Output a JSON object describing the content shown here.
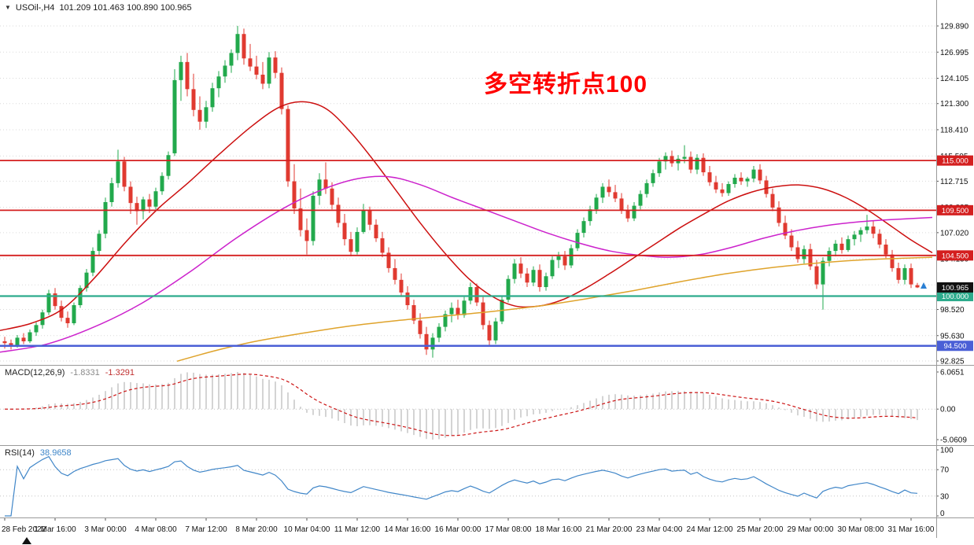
{
  "window": {
    "header_symbol": "USOil-,H4",
    "header_ohlc": "101.209 101.463 100.890 100.965"
  },
  "annotation": {
    "text": "多空转折点100",
    "color": "#ff0000"
  },
  "chart_data": {
    "type": "candlestick",
    "symbol": "USOil-",
    "timeframe": "H4",
    "last_bar": {
      "open": 101.209,
      "high": 101.463,
      "low": 100.89,
      "close": 100.965
    },
    "price_axis": {
      "labels": [
        "129.890",
        "126.995",
        "124.105",
        "121.300",
        "118.410",
        "115.505",
        "112.715",
        "109.825",
        "107.020",
        "104.130",
        "101.240",
        "98.520",
        "95.630",
        "92.825"
      ],
      "top_value": 129.89,
      "bottom_value": 92.825
    },
    "time_axis": [
      "28 Feb 2022",
      "1 Mar 16:00",
      "3 Mar 00:00",
      "4 Mar 08:00",
      "7 Mar 12:00",
      "8 Mar 20:00",
      "10 Mar 04:00",
      "11 Mar 12:00",
      "14 Mar 16:00",
      "16 Mar 00:00",
      "17 Mar 08:00",
      "18 Mar 16:00",
      "21 Mar 20:00",
      "23 Mar 04:00",
      "24 Mar 12:00",
      "25 Mar 20:00",
      "29 Mar 00:00",
      "30 Mar 08:00",
      "31 Mar 16:00"
    ],
    "hlines": [
      {
        "price": 115.0,
        "label": "115.000",
        "color": "#d41f1f",
        "width": 1.8
      },
      {
        "price": 109.5,
        "label": "109.500",
        "color": "#d41f1f",
        "width": 1.8
      },
      {
        "price": 104.5,
        "label": "104.500",
        "color": "#d41f1f",
        "width": 1.8
      },
      {
        "price": 100.0,
        "label": "100.000",
        "color": "#2cab8c",
        "width": 2.2
      },
      {
        "price": 94.5,
        "label": "94.500",
        "color": "#4a5fd6",
        "width": 2.4
      }
    ],
    "price_tag": {
      "label": "100.965",
      "price": 100.965,
      "bg": "#111111"
    },
    "colors": {
      "up": "#22a94c",
      "down": "#e03a30",
      "ma_fast": "#cc0f0f",
      "ma_mid": "#cc22cc",
      "ma_slow": "#dfa32b",
      "macd_hist": "#bdbdbd",
      "macd_signal": "#cc1414",
      "rsi": "#4086c8",
      "marker": "#2a7fd4"
    },
    "candles": [
      [
        95.0,
        95.5,
        94.2,
        94.8
      ],
      [
        94.8,
        95.2,
        94.1,
        94.5
      ],
      [
        94.5,
        95.7,
        94.3,
        95.4
      ],
      [
        95.4,
        95.9,
        94.7,
        95.0
      ],
      [
        95.0,
        96.3,
        94.8,
        96.0
      ],
      [
        96.0,
        97.1,
        95.6,
        96.8
      ],
      [
        96.8,
        98.5,
        96.4,
        98.2
      ],
      [
        98.2,
        100.7,
        97.9,
        100.3
      ],
      [
        100.3,
        100.9,
        98.5,
        98.9
      ],
      [
        98.9,
        99.5,
        97.2,
        97.6
      ],
      [
        97.6,
        98.3,
        96.5,
        97.0
      ],
      [
        97.0,
        99.3,
        96.8,
        99.0
      ],
      [
        99.0,
        101.2,
        98.7,
        100.9
      ],
      [
        100.9,
        103.0,
        100.5,
        102.6
      ],
      [
        102.6,
        105.4,
        102.2,
        105.0
      ],
      [
        105.0,
        107.3,
        104.5,
        106.9
      ],
      [
        106.9,
        110.9,
        106.4,
        110.4
      ],
      [
        110.4,
        113.1,
        109.9,
        112.5
      ],
      [
        112.5,
        116.2,
        112.0,
        114.9
      ],
      [
        114.9,
        115.4,
        111.6,
        112.1
      ],
      [
        112.1,
        112.7,
        109.1,
        110.3
      ],
      [
        110.3,
        111.0,
        107.9,
        109.4
      ],
      [
        109.4,
        111.0,
        108.5,
        110.7
      ],
      [
        110.7,
        111.3,
        109.2,
        109.9
      ],
      [
        109.9,
        112.0,
        109.6,
        111.6
      ],
      [
        111.6,
        113.7,
        111.2,
        113.3
      ],
      [
        113.3,
        116.0,
        112.9,
        115.6
      ],
      [
        115.8,
        125.1,
        115.5,
        123.9
      ],
      [
        123.9,
        126.6,
        121.6,
        125.9
      ],
      [
        125.9,
        126.9,
        122.1,
        122.9
      ],
      [
        122.9,
        124.6,
        119.9,
        120.6
      ],
      [
        120.6,
        122.1,
        118.4,
        119.3
      ],
      [
        119.3,
        121.6,
        118.6,
        120.9
      ],
      [
        120.9,
        123.6,
        120.4,
        123.0
      ],
      [
        123.0,
        124.9,
        122.0,
        124.3
      ],
      [
        124.3,
        126.1,
        123.6,
        125.5
      ],
      [
        125.5,
        127.3,
        124.7,
        126.9
      ],
      [
        126.9,
        129.9,
        126.1,
        129.0
      ],
      [
        129.0,
        129.6,
        125.6,
        126.3
      ],
      [
        126.3,
        127.9,
        124.9,
        125.4
      ],
      [
        125.4,
        126.6,
        124.0,
        124.5
      ],
      [
        124.5,
        125.9,
        122.9,
        123.5
      ],
      [
        123.5,
        127.0,
        123.0,
        126.4
      ],
      [
        126.4,
        127.1,
        124.1,
        124.7
      ],
      [
        124.7,
        125.3,
        120.1,
        120.7
      ],
      [
        120.7,
        121.1,
        112.1,
        112.7
      ],
      [
        112.7,
        114.6,
        109.1,
        109.7
      ],
      [
        109.7,
        111.9,
        106.6,
        107.3
      ],
      [
        107.3,
        108.6,
        104.6,
        106.1
      ],
      [
        106.1,
        111.6,
        105.6,
        111.1
      ],
      [
        111.1,
        113.6,
        110.1,
        112.9
      ],
      [
        112.9,
        114.8,
        111.3,
        111.9
      ],
      [
        111.9,
        112.6,
        109.6,
        110.1
      ],
      [
        110.1,
        110.9,
        107.6,
        108.1
      ],
      [
        108.1,
        109.1,
        105.6,
        106.3
      ],
      [
        106.3,
        107.1,
        104.4,
        104.9
      ],
      [
        104.9,
        107.6,
        104.6,
        107.1
      ],
      [
        107.1,
        110.2,
        106.9,
        109.5
      ],
      [
        109.5,
        109.9,
        107.3,
        107.9
      ],
      [
        107.9,
        108.5,
        106.0,
        106.4
      ],
      [
        106.4,
        107.1,
        104.3,
        104.8
      ],
      [
        104.8,
        105.4,
        102.6,
        103.1
      ],
      [
        103.1,
        104.1,
        101.3,
        101.8
      ],
      [
        101.8,
        102.5,
        99.9,
        100.4
      ],
      [
        100.4,
        101.1,
        98.5,
        99.0
      ],
      [
        99.0,
        99.6,
        96.9,
        97.3
      ],
      [
        97.3,
        98.1,
        95.3,
        95.8
      ],
      [
        95.8,
        96.6,
        93.5,
        94.1
      ],
      [
        94.1,
        95.9,
        93.2,
        95.4
      ],
      [
        95.4,
        97.0,
        94.9,
        96.6
      ],
      [
        96.6,
        98.4,
        96.1,
        98.0
      ],
      [
        98.0,
        99.3,
        97.1,
        98.7
      ],
      [
        98.7,
        99.6,
        97.4,
        97.9
      ],
      [
        97.9,
        99.9,
        97.6,
        99.5
      ],
      [
        99.5,
        101.5,
        99.1,
        101.0
      ],
      [
        101.0,
        101.4,
        98.9,
        99.3
      ],
      [
        99.3,
        99.9,
        96.3,
        96.8
      ],
      [
        96.8,
        97.3,
        94.4,
        95.1
      ],
      [
        95.1,
        97.6,
        94.7,
        97.2
      ],
      [
        97.2,
        100.0,
        96.9,
        99.6
      ],
      [
        99.6,
        102.3,
        99.3,
        101.9
      ],
      [
        101.9,
        104.1,
        101.4,
        103.6
      ],
      [
        103.6,
        104.3,
        102.0,
        102.5
      ],
      [
        102.5,
        103.1,
        101.0,
        101.5
      ],
      [
        101.5,
        103.3,
        101.1,
        102.9
      ],
      [
        102.9,
        103.5,
        100.5,
        101.0
      ],
      [
        101.0,
        102.6,
        100.6,
        102.2
      ],
      [
        102.2,
        104.4,
        101.9,
        104.0
      ],
      [
        104.0,
        104.9,
        103.1,
        104.4
      ],
      [
        104.4,
        105.0,
        102.9,
        103.4
      ],
      [
        103.4,
        105.7,
        103.1,
        105.3
      ],
      [
        105.3,
        107.4,
        105.0,
        107.0
      ],
      [
        107.0,
        108.7,
        106.5,
        108.3
      ],
      [
        108.3,
        110.0,
        107.8,
        109.6
      ],
      [
        109.6,
        111.3,
        109.1,
        110.9
      ],
      [
        110.9,
        112.5,
        110.3,
        112.1
      ],
      [
        112.1,
        112.9,
        111.0,
        111.5
      ],
      [
        111.5,
        112.3,
        110.4,
        110.8
      ],
      [
        110.8,
        111.4,
        109.1,
        109.5
      ],
      [
        109.5,
        110.1,
        108.2,
        108.6
      ],
      [
        108.6,
        110.4,
        108.3,
        110.0
      ],
      [
        110.0,
        111.7,
        109.6,
        111.3
      ],
      [
        111.3,
        112.9,
        110.9,
        112.5
      ],
      [
        112.5,
        114.0,
        112.1,
        113.6
      ],
      [
        113.6,
        115.3,
        113.2,
        114.9
      ],
      [
        114.9,
        115.9,
        114.0,
        115.5
      ],
      [
        115.5,
        116.1,
        114.3,
        114.7
      ],
      [
        114.7,
        115.6,
        113.9,
        115.2
      ],
      [
        115.2,
        116.7,
        114.7,
        115.4
      ],
      [
        115.4,
        116.0,
        113.6,
        114.0
      ],
      [
        114.0,
        115.7,
        113.5,
        115.3
      ],
      [
        115.3,
        115.8,
        113.3,
        113.7
      ],
      [
        113.7,
        114.4,
        112.2,
        112.6
      ],
      [
        112.6,
        113.3,
        111.4,
        111.8
      ],
      [
        111.8,
        112.5,
        111.0,
        111.4
      ],
      [
        111.4,
        112.7,
        111.1,
        112.4
      ],
      [
        112.4,
        113.5,
        112.0,
        113.1
      ],
      [
        113.1,
        113.7,
        112.3,
        112.7
      ],
      [
        112.7,
        113.2,
        112.1,
        113.0
      ],
      [
        113.0,
        114.4,
        112.6,
        114.0
      ],
      [
        114.0,
        114.6,
        112.4,
        112.8
      ],
      [
        112.8,
        113.3,
        110.9,
        111.3
      ],
      [
        111.3,
        111.9,
        109.4,
        109.8
      ],
      [
        109.8,
        110.5,
        107.7,
        108.1
      ],
      [
        108.1,
        108.9,
        106.3,
        106.7
      ],
      [
        106.7,
        107.4,
        105.0,
        105.4
      ],
      [
        105.4,
        106.1,
        103.7,
        104.1
      ],
      [
        104.1,
        105.6,
        103.6,
        105.2
      ],
      [
        105.2,
        105.8,
        102.9,
        103.3
      ],
      [
        103.3,
        104.0,
        100.8,
        101.3
      ],
      [
        101.3,
        104.3,
        98.5,
        103.9
      ],
      [
        103.9,
        105.4,
        103.3,
        105.0
      ],
      [
        105.0,
        106.2,
        104.4,
        105.8
      ],
      [
        105.8,
        106.5,
        104.7,
        105.1
      ],
      [
        105.1,
        106.7,
        104.9,
        106.3
      ],
      [
        106.3,
        107.2,
        105.6,
        106.8
      ],
      [
        106.8,
        107.6,
        106.0,
        107.3
      ],
      [
        107.3,
        109.0,
        106.9,
        107.7
      ],
      [
        107.7,
        108.3,
        106.4,
        106.9
      ],
      [
        106.9,
        107.4,
        105.3,
        105.7
      ],
      [
        105.7,
        106.3,
        104.2,
        104.6
      ],
      [
        104.6,
        105.1,
        102.7,
        103.1
      ],
      [
        103.1,
        103.7,
        101.4,
        101.8
      ],
      [
        101.8,
        103.5,
        101.3,
        103.1
      ],
      [
        103.1,
        103.6,
        100.9,
        101.3
      ],
      [
        101.209,
        101.463,
        100.89,
        100.965
      ]
    ],
    "moving_averages": [
      {
        "name": "ma-fast-red",
        "color_key": "ma_fast",
        "anchors": [
          [
            0,
            96.2
          ],
          [
            40,
            97.0
          ],
          [
            80,
            98.6
          ],
          [
            120,
            102.0
          ],
          [
            160,
            106.0
          ],
          [
            200,
            109.6
          ],
          [
            240,
            112.6
          ],
          [
            280,
            115.8
          ],
          [
            320,
            118.8
          ],
          [
            355,
            120.9
          ],
          [
            385,
            121.5
          ],
          [
            415,
            120.7
          ],
          [
            445,
            118.2
          ],
          [
            475,
            115.0
          ],
          [
            505,
            111.5
          ],
          [
            535,
            108.0
          ],
          [
            565,
            104.8
          ],
          [
            595,
            102.0
          ],
          [
            625,
            100.0
          ],
          [
            655,
            98.9
          ],
          [
            685,
            98.9
          ],
          [
            715,
            99.6
          ],
          [
            745,
            100.9
          ],
          [
            775,
            102.5
          ],
          [
            805,
            104.2
          ],
          [
            835,
            105.9
          ],
          [
            865,
            107.6
          ],
          [
            895,
            109.1
          ],
          [
            925,
            110.5
          ],
          [
            955,
            111.5
          ],
          [
            985,
            112.1
          ],
          [
            1015,
            112.3
          ],
          [
            1045,
            111.9
          ],
          [
            1075,
            110.9
          ],
          [
            1105,
            109.4
          ],
          [
            1135,
            107.6
          ],
          [
            1160,
            106.1
          ],
          [
            1185,
            104.8
          ]
        ]
      },
      {
        "name": "ma-mid-magenta",
        "color_key": "ma_mid",
        "anchors": [
          [
            0,
            93.8
          ],
          [
            60,
            94.7
          ],
          [
            120,
            96.6
          ],
          [
            180,
            99.2
          ],
          [
            240,
            102.6
          ],
          [
            300,
            106.4
          ],
          [
            360,
            109.7
          ],
          [
            410,
            111.8
          ],
          [
            455,
            113.0
          ],
          [
            495,
            113.2
          ],
          [
            535,
            112.3
          ],
          [
            575,
            110.9
          ],
          [
            615,
            109.6
          ],
          [
            655,
            108.3
          ],
          [
            695,
            107.0
          ],
          [
            735,
            105.9
          ],
          [
            775,
            105.0
          ],
          [
            815,
            104.5
          ],
          [
            850,
            104.3
          ],
          [
            890,
            104.6
          ],
          [
            930,
            105.4
          ],
          [
            970,
            106.4
          ],
          [
            1010,
            107.2
          ],
          [
            1050,
            107.8
          ],
          [
            1090,
            108.2
          ],
          [
            1130,
            108.45
          ],
          [
            1185,
            108.7
          ]
        ]
      },
      {
        "name": "ma-slow-orange",
        "color_key": "ma_slow",
        "anchors": [
          [
            225,
            92.8
          ],
          [
            275,
            94.0
          ],
          [
            325,
            95.0
          ],
          [
            385,
            95.9
          ],
          [
            445,
            96.7
          ],
          [
            505,
            97.3
          ],
          [
            565,
            97.8
          ],
          [
            625,
            98.3
          ],
          [
            685,
            98.9
          ],
          [
            745,
            99.7
          ],
          [
            805,
            100.6
          ],
          [
            865,
            101.6
          ],
          [
            925,
            102.5
          ],
          [
            985,
            103.2
          ],
          [
            1045,
            103.7
          ],
          [
            1105,
            104.05
          ],
          [
            1185,
            104.3
          ]
        ]
      }
    ],
    "indicators": [
      {
        "label": "MACD(12,26,9)",
        "value_main": "-1.8331",
        "value_signal": "-1.3291",
        "axis_max": "6.0651",
        "axis_zero": "0.00",
        "axis_min": "-5.0609"
      },
      {
        "label": "RSI(14)",
        "value": "38.9658",
        "axis": [
          "100",
          "70",
          "30",
          "0"
        ],
        "levels": [
          70,
          30
        ]
      }
    ]
  }
}
